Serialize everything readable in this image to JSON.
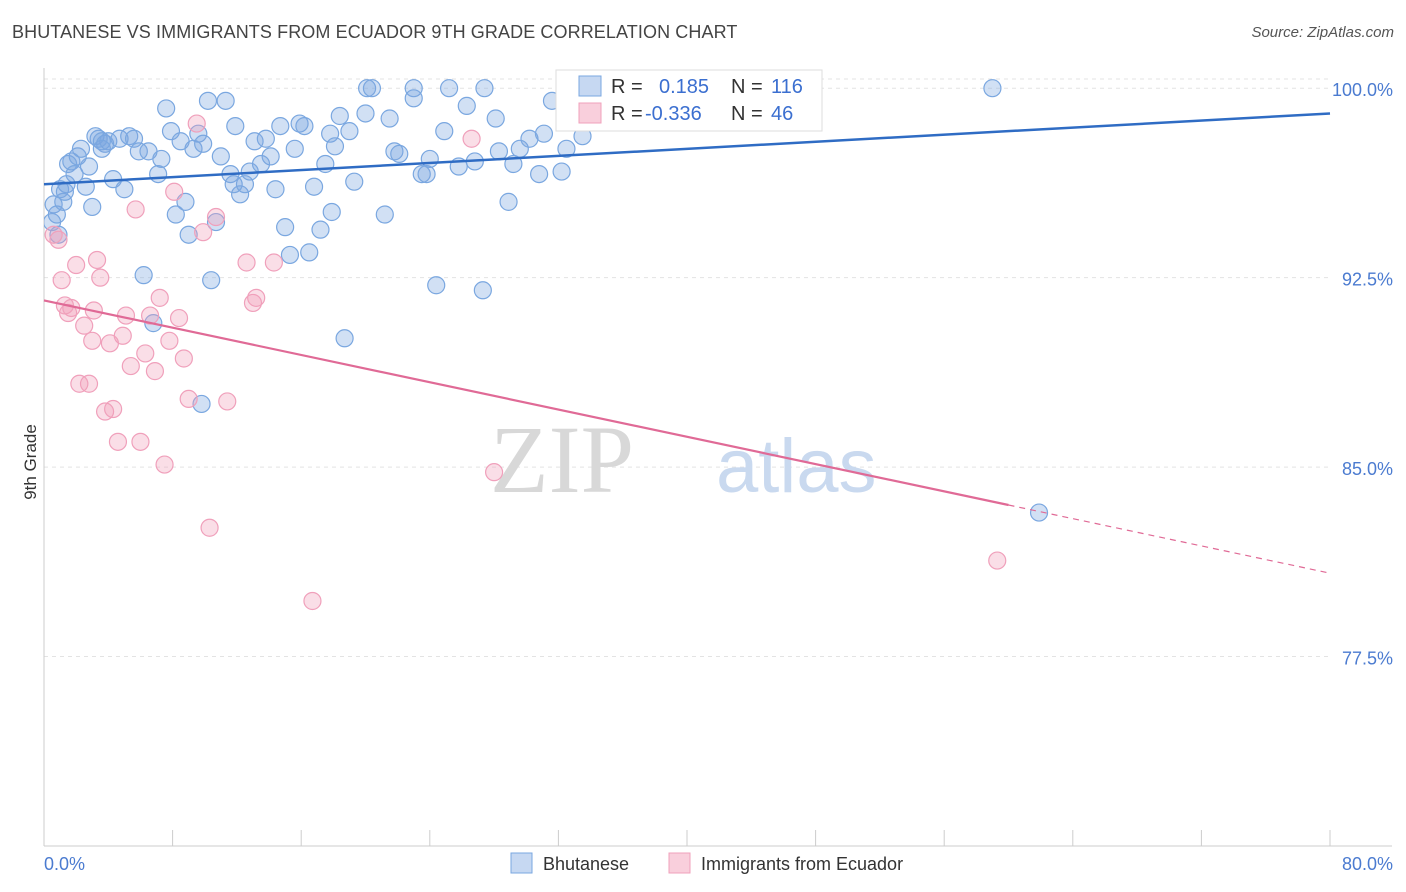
{
  "title": "BHUTANESE VS IMMIGRANTS FROM ECUADOR 9TH GRADE CORRELATION CHART",
  "source": "Source: ZipAtlas.com",
  "watermark": {
    "zip": "ZIP",
    "atlas": "atlas"
  },
  "chart_data": {
    "type": "scatter",
    "title": "BHUTANESE VS IMMIGRANTS FROM ECUADOR 9TH GRADE CORRELATION CHART",
    "xlabel": "",
    "ylabel": "9th Grade",
    "xlim": [
      0,
      80
    ],
    "ylim": [
      70,
      100.8
    ],
    "x_tick_labels": [
      "0.0%",
      "80.0%"
    ],
    "y_ticks": [
      {
        "value": 100.0,
        "label": "100.0%"
      },
      {
        "value": 92.5,
        "label": "92.5%"
      },
      {
        "value": 85.0,
        "label": "85.0%"
      },
      {
        "value": 77.5,
        "label": "77.5%"
      }
    ],
    "legend_position": "bottom-center",
    "series": [
      {
        "name": "Bhutanese",
        "color": "#7aa7e0",
        "line_color": "#2f6cc4",
        "R": "0.185",
        "N": "116",
        "trend": {
          "x0": 0,
          "y0": 96.2,
          "x1": 80,
          "y1": 99.0
        },
        "points": [
          [
            0.5,
            94.7
          ],
          [
            0.6,
            95.4
          ],
          [
            0.8,
            95.0
          ],
          [
            0.9,
            94.2
          ],
          [
            1.0,
            96.0
          ],
          [
            1.2,
            95.5
          ],
          [
            1.4,
            96.2
          ],
          [
            1.5,
            97.0
          ],
          [
            1.7,
            97.1
          ],
          [
            1.9,
            96.6
          ],
          [
            2.1,
            97.3
          ],
          [
            2.3,
            97.6
          ],
          [
            2.6,
            96.1
          ],
          [
            2.8,
            96.9
          ],
          [
            3.0,
            95.3
          ],
          [
            3.2,
            98.1
          ],
          [
            3.4,
            98.0
          ],
          [
            3.6,
            97.9
          ],
          [
            3.8,
            97.8
          ],
          [
            4.0,
            97.9
          ],
          [
            4.3,
            96.4
          ],
          [
            4.7,
            98.0
          ],
          [
            5.0,
            96.0
          ],
          [
            5.3,
            98.1
          ],
          [
            5.6,
            98.0
          ],
          [
            5.9,
            97.5
          ],
          [
            6.2,
            92.6
          ],
          [
            6.5,
            97.5
          ],
          [
            6.8,
            90.7
          ],
          [
            7.1,
            96.6
          ],
          [
            7.3,
            97.2
          ],
          [
            7.6,
            99.2
          ],
          [
            7.9,
            98.3
          ],
          [
            8.2,
            95.0
          ],
          [
            8.5,
            97.9
          ],
          [
            8.8,
            95.5
          ],
          [
            9.0,
            94.2
          ],
          [
            9.3,
            97.6
          ],
          [
            9.6,
            98.2
          ],
          [
            9.9,
            97.8
          ],
          [
            10.2,
            99.5
          ],
          [
            10.4,
            92.4
          ],
          [
            10.7,
            94.7
          ],
          [
            11.0,
            97.3
          ],
          [
            11.3,
            99.5
          ],
          [
            11.6,
            96.6
          ],
          [
            11.9,
            98.5
          ],
          [
            12.2,
            95.8
          ],
          [
            12.5,
            96.2
          ],
          [
            12.8,
            96.7
          ],
          [
            13.1,
            97.9
          ],
          [
            13.5,
            97.0
          ],
          [
            13.8,
            98.0
          ],
          [
            14.1,
            97.3
          ],
          [
            14.4,
            96.0
          ],
          [
            14.7,
            98.5
          ],
          [
            15.0,
            94.5
          ],
          [
            15.3,
            93.4
          ],
          [
            15.6,
            97.6
          ],
          [
            15.9,
            98.6
          ],
          [
            16.2,
            98.5
          ],
          [
            16.5,
            93.5
          ],
          [
            16.8,
            96.1
          ],
          [
            17.2,
            94.4
          ],
          [
            17.5,
            97.0
          ],
          [
            17.8,
            98.2
          ],
          [
            18.1,
            97.7
          ],
          [
            18.4,
            98.9
          ],
          [
            18.7,
            90.1
          ],
          [
            19.0,
            98.3
          ],
          [
            19.3,
            96.3
          ],
          [
            20.1,
            100.0
          ],
          [
            20.4,
            100.0
          ],
          [
            21.2,
            95.0
          ],
          [
            21.5,
            98.8
          ],
          [
            21.8,
            97.5
          ],
          [
            22.1,
            97.4
          ],
          [
            23.0,
            100.0
          ],
          [
            23.5,
            96.6
          ],
          [
            23.8,
            96.6
          ],
          [
            24.4,
            92.2
          ],
          [
            24.9,
            98.3
          ],
          [
            25.2,
            100.0
          ],
          [
            25.8,
            96.9
          ],
          [
            26.3,
            99.3
          ],
          [
            26.8,
            97.1
          ],
          [
            27.4,
            100.0
          ],
          [
            28.1,
            98.8
          ],
          [
            28.3,
            97.5
          ],
          [
            28.9,
            95.5
          ],
          [
            29.2,
            97.0
          ],
          [
            29.6,
            97.6
          ],
          [
            30.2,
            98.0
          ],
          [
            30.8,
            96.6
          ],
          [
            31.1,
            98.2
          ],
          [
            31.6,
            99.5
          ],
          [
            32.2,
            96.7
          ],
          [
            32.5,
            97.6
          ],
          [
            33.0,
            98.9
          ],
          [
            33.5,
            98.1
          ],
          [
            35.5,
            100.0
          ],
          [
            37.3,
            99.4
          ],
          [
            38.9,
            100.0
          ],
          [
            46.0,
            100.0
          ],
          [
            59.0,
            100.0
          ],
          [
            61.9,
            83.2
          ],
          [
            27.3,
            92.0
          ],
          [
            20.0,
            99.0
          ],
          [
            23.0,
            99.6
          ],
          [
            36.0,
            99.3
          ],
          [
            9.8,
            87.5
          ],
          [
            3.6,
            97.6
          ],
          [
            1.3,
            95.9
          ],
          [
            11.8,
            96.2
          ],
          [
            17.9,
            95.1
          ],
          [
            24.0,
            97.2
          ]
        ]
      },
      {
        "name": "Immigrants from Ecuador",
        "color": "#f0a0bb",
        "line_color": "#e06a96",
        "R": "-0.336",
        "N": "46",
        "trend": {
          "x0": 0,
          "y0": 91.6,
          "x1": 60.0,
          "y1": 83.5,
          "dash_x1": 80,
          "dash_y1": 80.8
        },
        "points": [
          [
            0.6,
            94.2
          ],
          [
            0.9,
            94.0
          ],
          [
            1.1,
            92.4
          ],
          [
            1.3,
            91.4
          ],
          [
            1.5,
            91.1
          ],
          [
            1.7,
            91.3
          ],
          [
            2.0,
            93.0
          ],
          [
            2.2,
            88.3
          ],
          [
            2.5,
            90.6
          ],
          [
            2.8,
            88.3
          ],
          [
            3.0,
            90.0
          ],
          [
            3.3,
            93.2
          ],
          [
            3.5,
            92.5
          ],
          [
            3.8,
            87.2
          ],
          [
            4.1,
            89.9
          ],
          [
            4.3,
            87.3
          ],
          [
            4.6,
            86.0
          ],
          [
            4.9,
            90.2
          ],
          [
            5.1,
            91.0
          ],
          [
            5.4,
            89.0
          ],
          [
            5.7,
            95.2
          ],
          [
            6.0,
            86.0
          ],
          [
            6.3,
            89.5
          ],
          [
            6.6,
            91.0
          ],
          [
            6.9,
            88.8
          ],
          [
            7.2,
            91.7
          ],
          [
            7.5,
            85.1
          ],
          [
            7.8,
            90.0
          ],
          [
            8.1,
            95.9
          ],
          [
            8.4,
            90.9
          ],
          [
            8.7,
            89.3
          ],
          [
            9.0,
            87.7
          ],
          [
            9.5,
            98.6
          ],
          [
            9.9,
            94.3
          ],
          [
            10.3,
            82.6
          ],
          [
            10.7,
            94.9
          ],
          [
            11.4,
            87.6
          ],
          [
            12.6,
            93.1
          ],
          [
            13.2,
            91.7
          ],
          [
            14.3,
            93.1
          ],
          [
            16.7,
            79.7
          ],
          [
            26.6,
            98.0
          ],
          [
            28.0,
            84.8
          ],
          [
            59.3,
            81.3
          ],
          [
            13.0,
            91.5
          ],
          [
            3.1,
            91.2
          ]
        ]
      }
    ]
  }
}
